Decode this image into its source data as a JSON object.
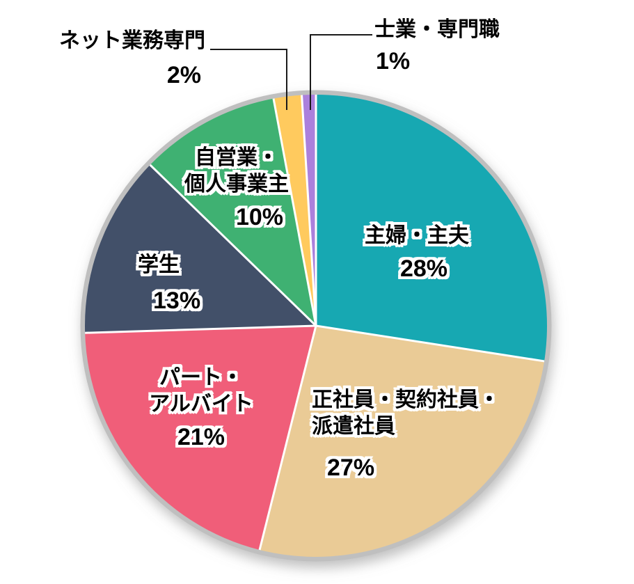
{
  "chart_data": {
    "type": "pie",
    "title": "",
    "direction": "clockwise",
    "start_angle_deg": 0,
    "unit": "%",
    "slices": [
      {
        "label": "主婦・主夫",
        "value": 28,
        "percent_label": "28%",
        "color": "#17A8B2",
        "label_placement": "inside",
        "display_lines": [
          "主婦・主夫"
        ]
      },
      {
        "label": "正社員・契約社員・派遣社員",
        "value": 27,
        "percent_label": "27%",
        "color": "#EACB96",
        "label_placement": "inside",
        "display_lines": [
          "正社員・契約社員・",
          "派遣社員"
        ]
      },
      {
        "label": "パート・アルバイト",
        "value": 21,
        "percent_label": "21%",
        "color": "#F05E79",
        "label_placement": "inside",
        "display_lines": [
          "パート・",
          "アルバイト"
        ]
      },
      {
        "label": "学生",
        "value": 13,
        "percent_label": "13%",
        "color": "#425069",
        "label_placement": "inside",
        "display_lines": [
          "学生"
        ]
      },
      {
        "label": "自営業・個人事業主",
        "value": 10,
        "percent_label": "10%",
        "color": "#3FB172",
        "label_placement": "inside",
        "display_lines": [
          "自営業・",
          "個人事業主"
        ]
      },
      {
        "label": "ネット業務専門",
        "value": 2,
        "percent_label": "2%",
        "color": "#FFCA5E",
        "label_placement": "outside",
        "display_lines": [
          "ネット業務専門"
        ]
      },
      {
        "label": "士業・専門職",
        "value": 1,
        "percent_label": "1%",
        "color": "#AB80DC",
        "label_placement": "outside",
        "display_lines": [
          "士業・専門職"
        ]
      }
    ],
    "colors": {
      "rim": "#BFBFBF",
      "slice_gap": "#FFFFFF",
      "background": "#FFFFFF",
      "label_text": "#000000",
      "label_outline": "#FFFFFF",
      "leader_line": "#1A1A1A"
    }
  }
}
